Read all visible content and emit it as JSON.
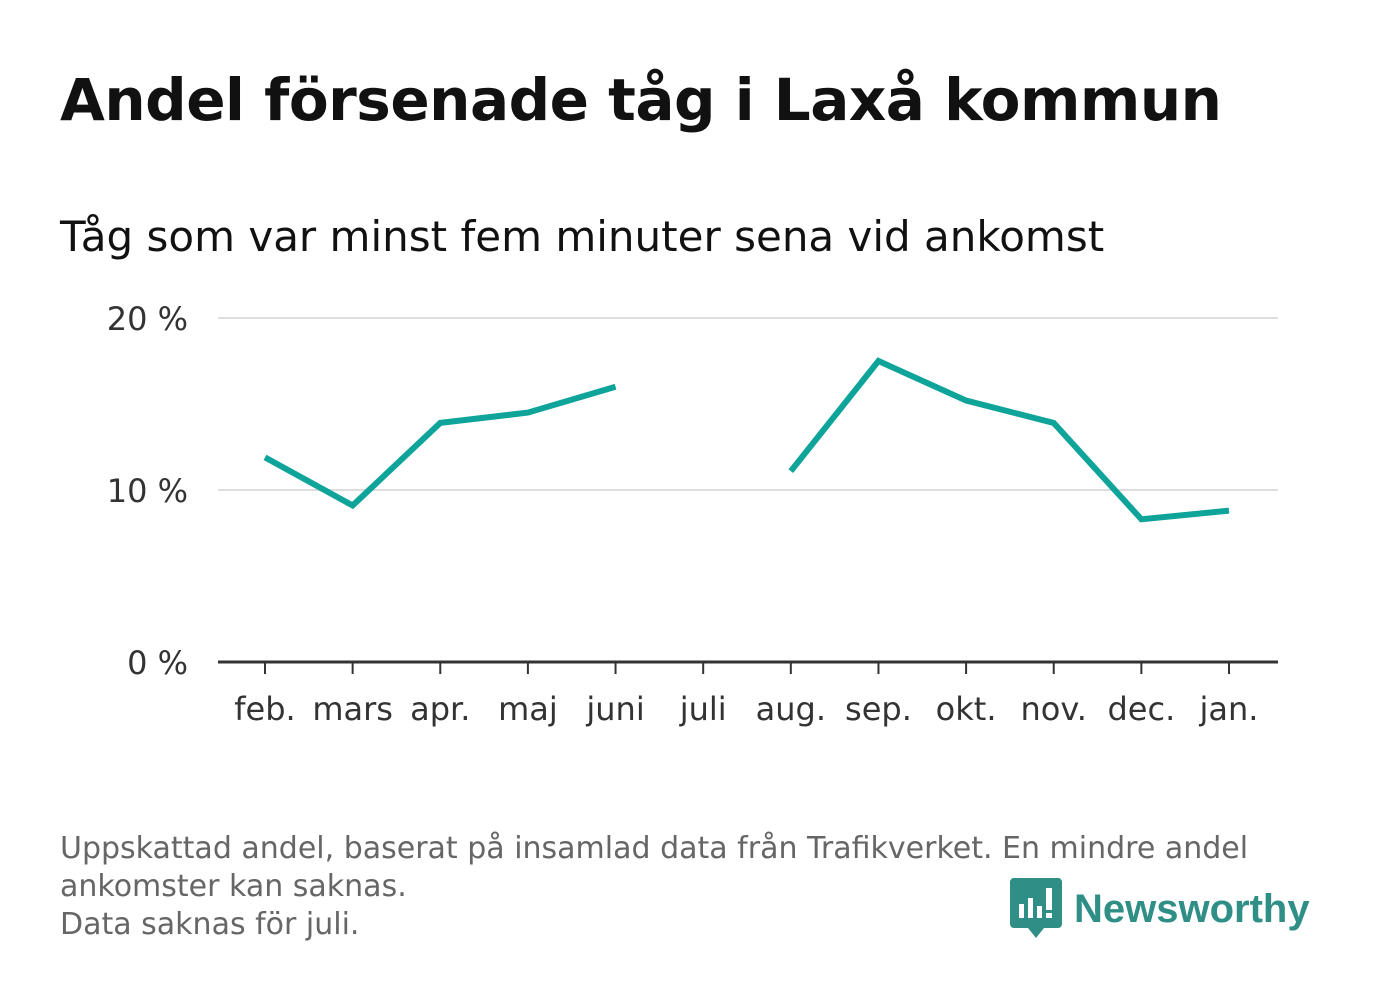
{
  "header": {
    "title": "Andel försenade tåg i Laxå kommun",
    "subtitle": "Tåg som var minst fem minuter sena vid ankomst"
  },
  "chart_data": {
    "type": "line",
    "categories": [
      "feb.",
      "mars",
      "apr.",
      "maj",
      "juni",
      "juli",
      "aug.",
      "sep.",
      "okt.",
      "nov.",
      "dec.",
      "jan."
    ],
    "series": [
      {
        "values": [
          11.9,
          9.1,
          13.9,
          14.5,
          16.0,
          null,
          11.1,
          17.5,
          15.2,
          13.9,
          8.3,
          8.8
        ]
      }
    ],
    "yticks": [
      "0 %",
      "10 %",
      "20 %"
    ],
    "ytick_values": [
      0,
      10,
      20
    ],
    "ylim": [
      0,
      20
    ],
    "grid": true,
    "line_color": "#0fa49a"
  },
  "footer": {
    "note_line1": "Uppskattad andel, baserat på insamlad data från Trafikverket. En mindre andel",
    "note_line2": "ankomster kan saknas.",
    "note_line3": "Data saknas för juli."
  },
  "brand": {
    "name": "Newsworthy",
    "icon": "newsworthy-logo-icon",
    "color": "#2f8f86"
  }
}
